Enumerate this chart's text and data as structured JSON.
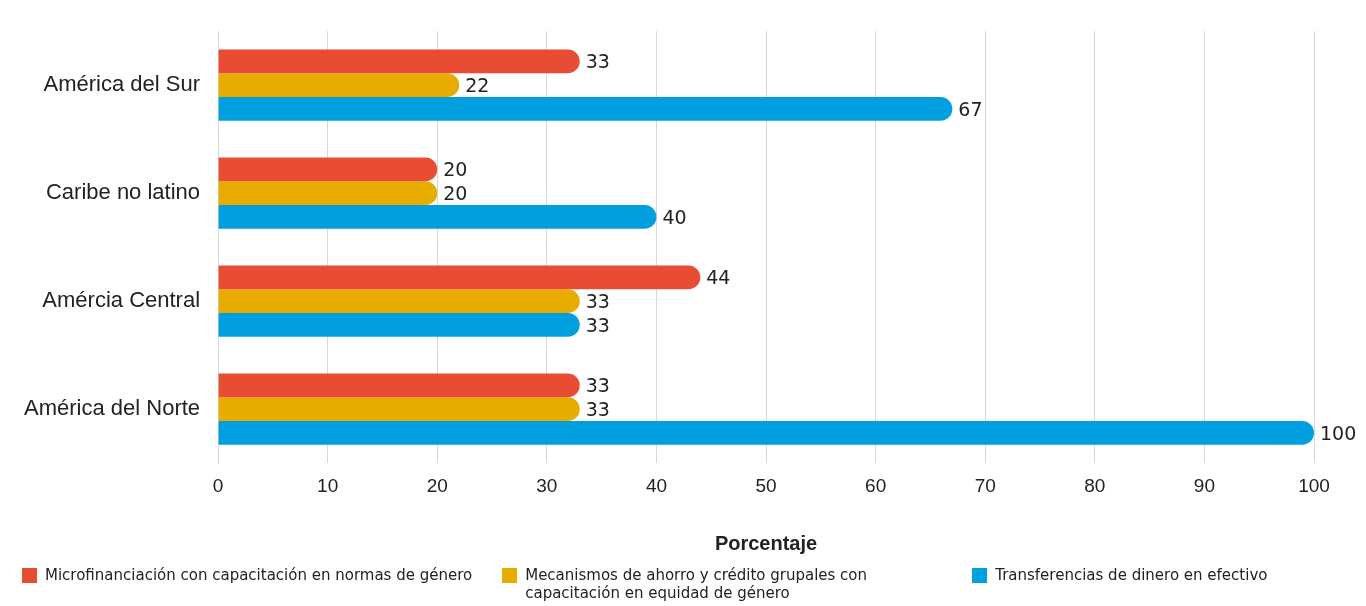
{
  "chart_data": {
    "type": "bar",
    "orientation": "horizontal",
    "categories": [
      "América del Sur",
      "Caribe no latino",
      "Amércia Central",
      "América del Norte"
    ],
    "series": [
      {
        "name": "Microfinanciación con capacitación en normas de género",
        "color": "#e84c33",
        "values": [
          33,
          20,
          44,
          33
        ]
      },
      {
        "name": "Mecanismos de ahorro y crédito grupales con capacitación en equidad de género",
        "color": "#e8ab00",
        "values": [
          22,
          20,
          33,
          33
        ]
      },
      {
        "name": "Transferencias de dinero en efectivo",
        "color": "#00a0e0",
        "values": [
          67,
          40,
          33,
          100
        ]
      }
    ],
    "xlim": [
      0,
      100
    ],
    "xticks": [
      0,
      10,
      20,
      30,
      40,
      50,
      60,
      70,
      80,
      90,
      100
    ],
    "xlabel": "Porcentaje",
    "grid": "x",
    "legend": "bottom",
    "data_labels": true
  }
}
